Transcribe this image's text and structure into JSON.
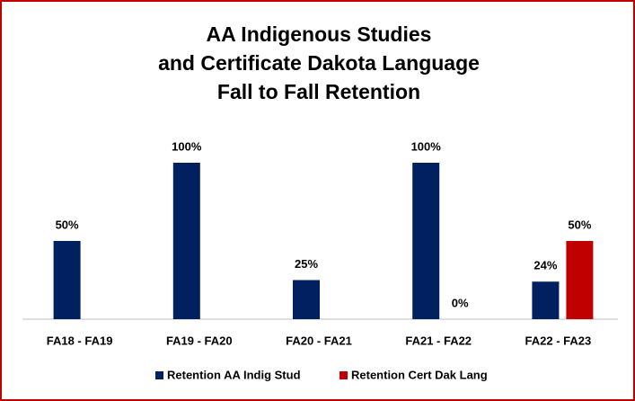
{
  "chart_data": {
    "type": "bar",
    "title": [
      "AA Indigenous Studies",
      "and Certificate Dakota Language",
      "Fall to Fall Retention"
    ],
    "categories": [
      "FA18 - FA19",
      "FA19 - FA20",
      "FA20 - FA21",
      "FA21 - FA22",
      "FA22 - FA23"
    ],
    "series": [
      {
        "name": "Retention AA Indig Stud",
        "color": "#002060",
        "values": [
          50,
          100,
          25,
          100,
          24
        ],
        "value_labels": [
          "50%",
          "100%",
          "25%",
          "100%",
          "24%"
        ]
      },
      {
        "name": "Retention Cert Dak Lang",
        "color": "#c00000",
        "values": [
          null,
          null,
          null,
          0,
          50
        ],
        "value_labels": [
          null,
          null,
          null,
          "0%",
          "50%"
        ]
      }
    ],
    "ylim": [
      0,
      100
    ],
    "legend": "bottom"
  }
}
